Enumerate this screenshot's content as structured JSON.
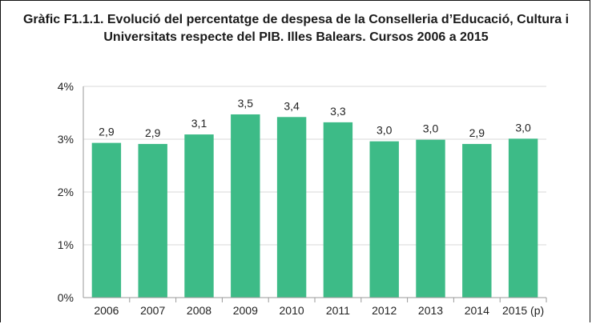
{
  "chart_data": {
    "type": "bar",
    "title_line1": "Gràfic F1.1.1. Evolució del percentatge de despesa de la Conselleria d’Educació, Cultura i",
    "title_line2": "Universitats respecte del PIB. Illes Balears. Cursos 2006 a 2015",
    "categories": [
      "2006",
      "2007",
      "2008",
      "2009",
      "2010",
      "2011",
      "2012",
      "2013",
      "2014",
      "2015 (p)"
    ],
    "values": [
      2.93,
      2.91,
      3.09,
      3.47,
      3.42,
      3.32,
      2.96,
      2.99,
      2.91,
      3.01
    ],
    "data_labels": [
      "2,9",
      "2,9",
      "3,1",
      "3,5",
      "3,4",
      "3,3",
      "3,0",
      "3,0",
      "2,9",
      "3,0"
    ],
    "yticks": [
      "0%",
      "1%",
      "2%",
      "3%",
      "4%"
    ],
    "ylim": [
      0,
      4
    ],
    "grid": true,
    "colors": {
      "bar": "#3dbb87",
      "grid": "#d9d9d9",
      "axis": "#9a9a9a"
    }
  }
}
